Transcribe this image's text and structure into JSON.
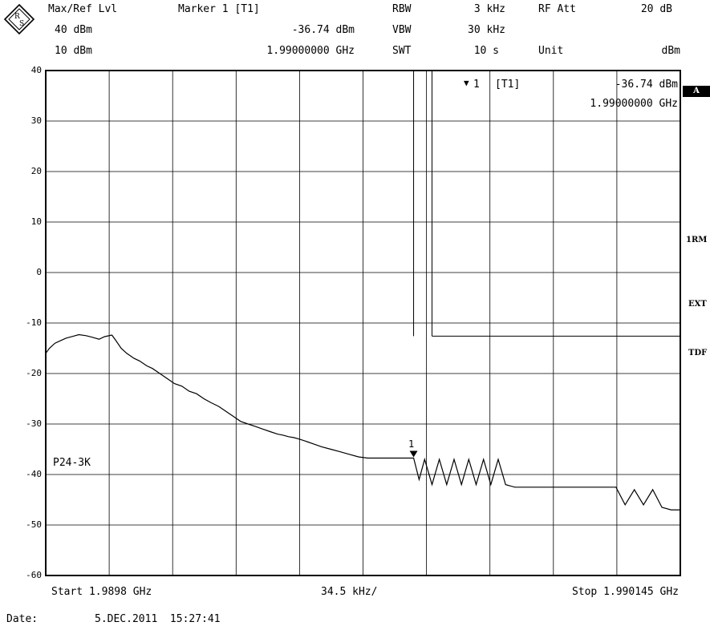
{
  "header": {
    "max_ref_label": "Max/Ref Lvl",
    "max_ref_value": "40 dBm",
    "ref_offset": "10 dBm",
    "marker_label": "Marker 1 [T1]",
    "marker_level": "-36.74 dBm",
    "marker_freq": "1.99000000 GHz",
    "rbw_label": "RBW",
    "rbw_value": "3 kHz",
    "vbw_label": "VBW",
    "vbw_value": "30 kHz",
    "swt_label": "SWT",
    "swt_value": "10 s",
    "rfatt_label": "RF Att",
    "rfatt_value": "20 dB",
    "unit_label": "Unit",
    "unit_value": "dBm"
  },
  "marker_box": {
    "symbol": "▼",
    "number": "1",
    "tag": "[T1]",
    "level": "-36.74 dBm",
    "freq": "1.99000000 GHz"
  },
  "side_labels": {
    "a": "A",
    "rm": "1RM",
    "ext": "EXT",
    "tdf": "TDF"
  },
  "trace_label": "P24-3K",
  "marker_number": "1",
  "footer": {
    "start": "Start 1.9898 GHz",
    "span": "34.5 kHz/",
    "stop": "Stop 1.990145 GHz",
    "date_label": "Date:",
    "date_value": "5.DEC.2011  15:27:41"
  },
  "chart_data": {
    "type": "line",
    "title": "",
    "xlabel": "",
    "ylabel": "",
    "x_unit": "GHz",
    "xlim": [
      1.9898,
      1.990145
    ],
    "ylim": [
      -60,
      40
    ],
    "y_ticks": [
      "40",
      "30",
      "20",
      "10",
      "0",
      "-10",
      "-20",
      "-30",
      "-40",
      "-50",
      "-60"
    ],
    "grid": true,
    "marker": {
      "x": 1.99,
      "y": -36.74,
      "label": "1"
    },
    "limit_lines": [
      {
        "x": 1.99,
        "y_from": 40,
        "y_to": -12.6
      },
      {
        "x": 1.99001,
        "y_from": 40,
        "y_to": -12.6
      },
      {
        "x_from": 1.99001,
        "x_to": 1.990145,
        "y": -12.6
      }
    ],
    "series": [
      {
        "x": [
          1.9898,
          1.989802,
          1.989805,
          1.989808,
          1.989811,
          1.989815,
          1.989818,
          1.989822,
          1.989825,
          1.989829,
          1.989832,
          1.989836,
          1.989838,
          1.989841,
          1.989844,
          1.989848,
          1.989851,
          1.989855,
          1.989858,
          1.989862,
          1.989866,
          1.98987,
          1.989874,
          1.989878,
          1.989882,
          1.989886,
          1.98989,
          1.989894,
          1.989898,
          1.989902,
          1.989906,
          1.98991,
          1.989914,
          1.989918,
          1.989922,
          1.989926,
          1.989929,
          1.989932,
          1.989935,
          1.989938,
          1.989942,
          1.989946,
          1.98995,
          1.989955,
          1.98996,
          1.989965,
          1.98997,
          1.98997,
          1.989975,
          1.98998,
          1.989985,
          1.98999,
          1.98999,
          1.989995,
          1.99,
          1.990003,
          1.990006,
          1.99001,
          1.990014,
          1.990018,
          1.990022,
          1.990026,
          1.99003,
          1.990034,
          1.990038,
          1.990042,
          1.990046,
          1.99005,
          1.990055,
          1.99006,
          1.99007,
          1.99008,
          1.99009,
          1.9901,
          1.990105,
          1.99011,
          1.990115,
          1.99012,
          1.990125,
          1.99013,
          1.990135,
          1.99014,
          1.990145
        ],
        "y": [
          -16,
          -15,
          -14,
          -13.5,
          -13,
          -12.6,
          -12.3,
          -12.5,
          -12.8,
          -13.2,
          -12.7,
          -12.4,
          -13.4,
          -15,
          -16,
          -17,
          -17.5,
          -18.5,
          -19,
          -20,
          -21,
          -22,
          -22.5,
          -23.5,
          -24,
          -25,
          -25.8,
          -26.5,
          -27.5,
          -28.5,
          -29.5,
          -30,
          -30.5,
          -31,
          -31.5,
          -32,
          -32.2,
          -32.5,
          -32.7,
          -33,
          -33.5,
          -34,
          -34.5,
          -35,
          -35.5,
          -36,
          -36.5,
          -36.5,
          -36.74,
          -36.74,
          -36.74,
          -36.74,
          -36.74,
          -36.74,
          -36.74,
          -41,
          -37,
          -42,
          -37,
          -42,
          -37,
          -42,
          -37,
          -42,
          -37,
          -42,
          -37,
          -42,
          -42.5,
          -42.5,
          -42.5,
          -42.5,
          -42.5,
          -42.5,
          -42.5,
          -42.5,
          -46,
          -43,
          -46,
          -43,
          -46.5,
          -47,
          -47
        ]
      }
    ]
  }
}
